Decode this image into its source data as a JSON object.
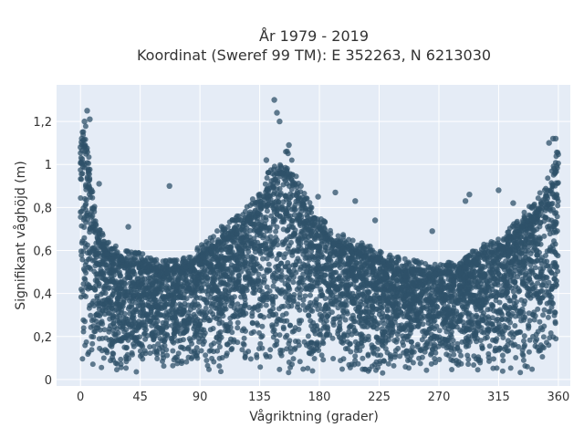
{
  "chart_data": {
    "type": "scatter",
    "title": [
      "År 1979 - 2019",
      "Koordinat (Sweref 99 TM): E 352263, N 6213030"
    ],
    "xlabel": "Vågriktning (grader)",
    "ylabel": "Signifikant våghöjd (m)",
    "xlim": [
      -18,
      369
    ],
    "ylim": [
      -0.03,
      1.37
    ],
    "xticks": [
      0,
      45,
      90,
      135,
      180,
      225,
      270,
      315,
      360
    ],
    "xtick_labels": [
      "0",
      "45",
      "90",
      "135",
      "180",
      "225",
      "270",
      "315",
      "360"
    ],
    "yticks": [
      0,
      0.2,
      0.4,
      0.6,
      0.8,
      1.0,
      1.2
    ],
    "ytick_labels": [
      "0",
      "0,2",
      "0,4",
      "0,6",
      "0,8",
      "1",
      "1,2"
    ],
    "grid": true,
    "marker_color": "#2f5269",
    "marker_opacity": 0.75,
    "plot_background": "#e5ecf6",
    "upper_envelope": [
      [
        0,
        1.1
      ],
      [
        3,
        1.15
      ],
      [
        6,
        1.0
      ],
      [
        10,
        0.8
      ],
      [
        15,
        0.65
      ],
      [
        20,
        0.6
      ],
      [
        30,
        0.57
      ],
      [
        45,
        0.55
      ],
      [
        60,
        0.52
      ],
      [
        75,
        0.52
      ],
      [
        90,
        0.58
      ],
      [
        105,
        0.66
      ],
      [
        120,
        0.72
      ],
      [
        135,
        0.82
      ],
      [
        145,
        0.95
      ],
      [
        155,
        1.0
      ],
      [
        160,
        0.95
      ],
      [
        165,
        0.85
      ],
      [
        175,
        0.75
      ],
      [
        190,
        0.65
      ],
      [
        210,
        0.6
      ],
      [
        230,
        0.55
      ],
      [
        250,
        0.52
      ],
      [
        270,
        0.5
      ],
      [
        285,
        0.52
      ],
      [
        300,
        0.58
      ],
      [
        315,
        0.62
      ],
      [
        330,
        0.7
      ],
      [
        345,
        0.8
      ],
      [
        355,
        0.92
      ],
      [
        360,
        1.05
      ]
    ],
    "lower_bound": 0.03,
    "notable_points": [
      [
        0,
        1.08
      ],
      [
        1,
        1.12
      ],
      [
        3,
        1.2
      ],
      [
        5,
        1.25
      ],
      [
        7,
        1.21
      ],
      [
        14,
        0.91
      ],
      [
        36,
        0.71
      ],
      [
        67,
        0.9
      ],
      [
        140,
        1.02
      ],
      [
        146,
        1.3
      ],
      [
        148,
        1.24
      ],
      [
        150,
        1.2
      ],
      [
        157,
        1.09
      ],
      [
        166,
        0.9
      ],
      [
        179,
        0.85
      ],
      [
        192,
        0.87
      ],
      [
        207,
        0.83
      ],
      [
        222,
        0.74
      ],
      [
        265,
        0.69
      ],
      [
        290,
        0.83
      ],
      [
        293,
        0.86
      ],
      [
        315,
        0.88
      ],
      [
        326,
        0.82
      ],
      [
        353,
        1.1
      ],
      [
        356,
        1.12
      ],
      [
        358,
        1.12
      ]
    ]
  }
}
